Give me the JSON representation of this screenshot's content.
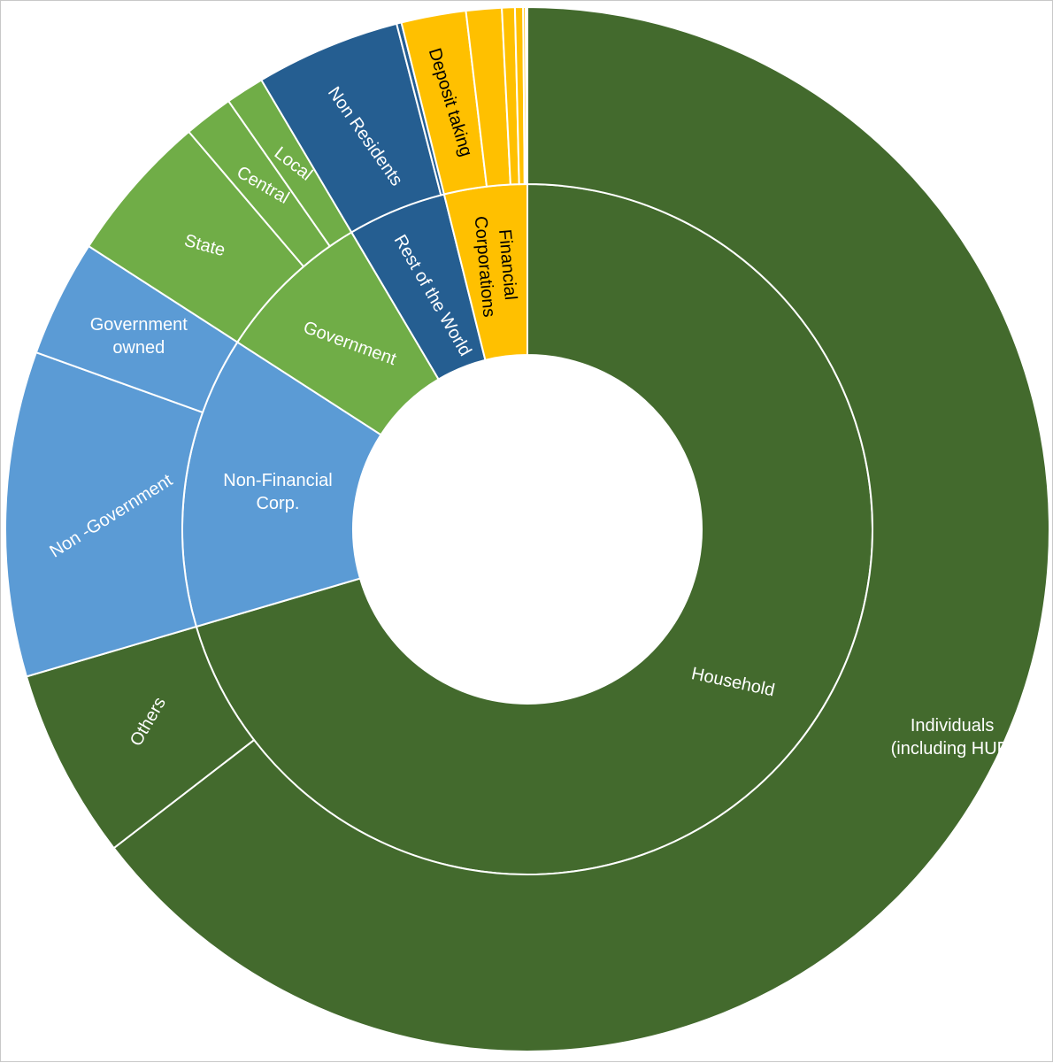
{
  "chart_data": {
    "type": "sunburst",
    "title": "",
    "inner_ring": [
      {
        "id": "household",
        "label": "Household",
        "share": 0.7045,
        "color": "#436a2d",
        "text_color": "#ffffff"
      },
      {
        "id": "non_financial",
        "label": "Non-Financial Corp.",
        "lines": [
          "Non-Financial",
          "Corp."
        ],
        "share": 0.1367,
        "color": "#5b9bd5",
        "text_color": "#ffffff"
      },
      {
        "id": "government",
        "label": "Government",
        "share": 0.0737,
        "color": "#70ad47",
        "text_color": "#ffffff"
      },
      {
        "id": "rest_of_world",
        "label": "Rest of the World",
        "share": 0.0463,
        "color": "#255e91",
        "text_color": "#ffffff"
      },
      {
        "id": "financial",
        "label": "Financial Corporations",
        "lines": [
          "Financial",
          "Corporations"
        ],
        "share": 0.0388,
        "color": "#ffc000",
        "text_color": "#000000"
      }
    ],
    "outer_ring": [
      {
        "id": "individuals",
        "parent": "household",
        "label": "Individuals (including HUF)",
        "lines": [
          "Individuals",
          "(including HUF)"
        ],
        "share": 0.6455,
        "color": "#436a2d",
        "text_color": "#ffffff"
      },
      {
        "id": "hh_others",
        "parent": "household",
        "label": "Others",
        "share": 0.059,
        "color": "#436a2d",
        "text_color": "#ffffff"
      },
      {
        "id": "non_government",
        "parent": "non_financial",
        "label": "Non -Government",
        "share": 0.1005,
        "color": "#5b9bd5",
        "text_color": "#ffffff"
      },
      {
        "id": "government_owned",
        "parent": "non_financial",
        "label": "Government owned",
        "lines": [
          "Government",
          "owned"
        ],
        "share": 0.0362,
        "color": "#5b9bd5",
        "text_color": "#ffffff"
      },
      {
        "id": "state",
        "parent": "government",
        "label": "State",
        "share": 0.0465,
        "color": "#70ad47",
        "text_color": "#ffffff"
      },
      {
        "id": "central",
        "parent": "government",
        "label": "Central",
        "share": 0.0153,
        "color": "#70ad47",
        "text_color": "#ffffff"
      },
      {
        "id": "local",
        "parent": "government",
        "label": "Local",
        "share": 0.0119,
        "color": "#70ad47",
        "text_color": "#ffffff"
      },
      {
        "id": "non_residents",
        "parent": "rest_of_world",
        "label": "Non Residents",
        "share": 0.0448,
        "color": "#255e91",
        "text_color": "#ffffff"
      },
      {
        "id": "row_other",
        "parent": "rest_of_world",
        "label": "",
        "share": 0.0015,
        "color": "#255e91",
        "text_color": "#ffffff"
      },
      {
        "id": "deposit_taking",
        "parent": "financial",
        "label": "Deposit taking",
        "share": 0.02,
        "color": "#ffc000",
        "text_color": "#000000"
      },
      {
        "id": "fin_b",
        "parent": "financial",
        "label": "",
        "share": 0.011,
        "color": "#ffc000",
        "text_color": "#000000"
      },
      {
        "id": "fin_c",
        "parent": "financial",
        "label": "",
        "share": 0.004,
        "color": "#ffc000",
        "text_color": "#000000"
      },
      {
        "id": "fin_d",
        "parent": "financial",
        "label": "",
        "share": 0.0025,
        "color": "#ffc000",
        "text_color": "#000000"
      },
      {
        "id": "fin_e",
        "parent": "financial",
        "label": "",
        "share": 0.0008,
        "color": "#ffc000",
        "text_color": "#000000"
      },
      {
        "id": "fin_f",
        "parent": "financial",
        "label": "",
        "share": 0.0005,
        "color": "#ffc000",
        "text_color": "#000000"
      }
    ],
    "start_angle_deg": 0,
    "direction": "clockwise",
    "separator_color": "#ffffff",
    "legend": "none",
    "grid": false
  }
}
